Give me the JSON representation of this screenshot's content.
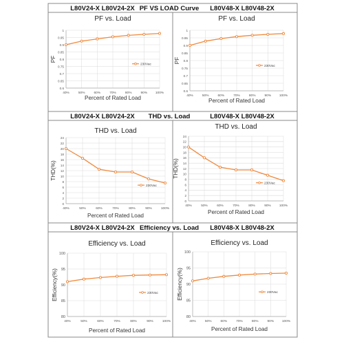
{
  "header_rows": [
    {
      "left": "L80V24-X  L80V24-2X",
      "center": "PF VS LOAD Curve",
      "right": "L80V48-X  L80V48-2X"
    },
    {
      "left": "L80V24-X  L80V24-2X",
      "center": "THD vs. Load",
      "right": "L80V48-X  L80V48-2X"
    },
    {
      "left": "L80V24-X  L80V24-2X",
      "center": "Efficiency vs. Load",
      "right": "L80V48-X  L80V48-2X"
    }
  ],
  "colors": {
    "series": "#f0883a",
    "grid": "#d9d9d9",
    "border": "#888888"
  },
  "chart_data": [
    {
      "type": "line",
      "title": "PF vs. Load",
      "xlabel": "Percent of Rated Load",
      "ylabel": "PF",
      "categories": [
        "40%",
        "50%",
        "60%",
        "70%",
        "80%",
        "90%",
        "100%"
      ],
      "ylim": [
        0.6,
        1.0
      ],
      "yticks": [
        "0.6",
        "0.65",
        "0.7",
        "0.75",
        "0.8",
        "0.85",
        "0.9",
        "0.95",
        "1"
      ],
      "grid": true,
      "legend": "right",
      "series": [
        {
          "name": "230Vac",
          "values": [
            0.9,
            0.925,
            0.94,
            0.955,
            0.965,
            0.972,
            0.978
          ]
        }
      ]
    },
    {
      "type": "line",
      "title": "PF vs. Load",
      "xlabel": "Percent of Rated Load",
      "ylabel": "PF",
      "categories": [
        "40%",
        "50%",
        "60%",
        "70%",
        "80%",
        "90%",
        "100%"
      ],
      "ylim": [
        0.6,
        1.0
      ],
      "yticks": [
        "0.6",
        "0.65",
        "0.7",
        "0.75",
        "0.8",
        "0.85",
        "0.9",
        "0.95",
        "1"
      ],
      "grid": true,
      "legend": "right",
      "series": [
        {
          "name": "230Vac",
          "values": [
            0.9,
            0.928,
            0.945,
            0.958,
            0.967,
            0.973,
            0.978
          ]
        }
      ]
    },
    {
      "type": "line",
      "title": "THD vs. Load",
      "xlabel": "Percent of Rated Load",
      "ylabel": "THD(%)",
      "categories": [
        "40%",
        "50%",
        "60%",
        "70%",
        "80%",
        "90%",
        "100%"
      ],
      "ylim": [
        0,
        24
      ],
      "yticks": [
        "0",
        "2",
        "4",
        "6",
        "8",
        "10",
        "12",
        "14",
        "16",
        "18",
        "20",
        "22",
        "24"
      ],
      "grid": true,
      "legend": "right",
      "series": [
        {
          "name": "230Vac",
          "values": [
            20,
            16.5,
            12.5,
            11.5,
            11.5,
            9,
            7.5
          ]
        }
      ]
    },
    {
      "type": "line",
      "title": "THD vs. Load",
      "xlabel": "Percent of Rated Load",
      "ylabel": "THD(%)",
      "categories": [
        "40%",
        "50%",
        "60%",
        "70%",
        "80%",
        "90%",
        "100%"
      ],
      "ylim": [
        0,
        24
      ],
      "yticks": [
        "0",
        "2",
        "4",
        "6",
        "8",
        "10",
        "12",
        "14",
        "16",
        "18",
        "20",
        "22",
        "24"
      ],
      "grid": true,
      "legend": "right",
      "series": [
        {
          "name": "230Vac",
          "values": [
            20,
            16,
            12.5,
            11.5,
            11.5,
            9.5,
            7.5
          ]
        }
      ]
    },
    {
      "type": "line",
      "title": "Efficiency vs. Load",
      "xlabel": "Percent of Rated Load",
      "ylabel": "Efficiency(%)",
      "categories": [
        "40%",
        "50%",
        "60%",
        "70%",
        "80%",
        "90%",
        "100%"
      ],
      "ylim": [
        80,
        100
      ],
      "yticks": [
        "80",
        "85",
        "90",
        "95",
        "100"
      ],
      "grid": true,
      "legend": "right",
      "series": [
        {
          "name": "230Vac",
          "values": [
            91,
            91.8,
            92.3,
            92.7,
            93,
            93.1,
            93.2
          ]
        }
      ]
    },
    {
      "type": "line",
      "title": "Efficiency vs. Load",
      "xlabel": "Percent of Rated Load",
      "ylabel": "Efficiency(%)",
      "categories": [
        "40%",
        "50%",
        "60%",
        "70%",
        "80%",
        "90%",
        "100%"
      ],
      "ylim": [
        80,
        100
      ],
      "yticks": [
        "80",
        "85",
        "90",
        "95",
        "100"
      ],
      "grid": true,
      "legend": "right",
      "series": [
        {
          "name": "230Vac",
          "values": [
            91,
            91.8,
            92.4,
            92.8,
            93.1,
            93.3,
            93.4
          ]
        }
      ]
    }
  ]
}
